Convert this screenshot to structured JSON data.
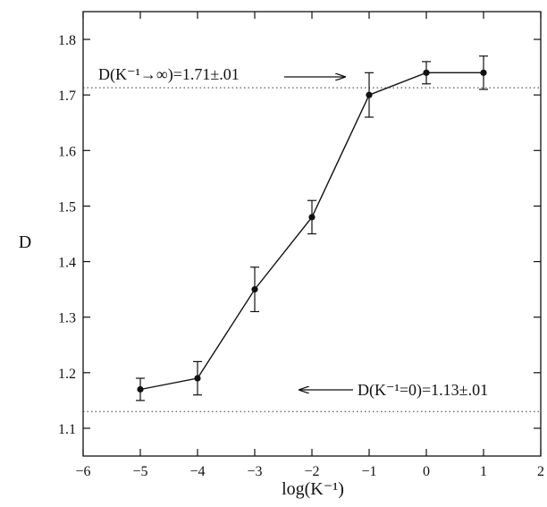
{
  "chart_data": {
    "type": "line",
    "xlabel": "log(K⁻¹)",
    "ylabel": "D",
    "xlim": [
      -6,
      2
    ],
    "ylim": [
      1.05,
      1.85
    ],
    "x_ticks": [
      -6,
      -5,
      -4,
      -3,
      -2,
      -1,
      0,
      1,
      2
    ],
    "y_ticks": [
      1.1,
      1.2,
      1.3,
      1.4,
      1.5,
      1.6,
      1.7,
      1.8
    ],
    "grid": false,
    "series": [
      {
        "x": [
          -5,
          -4,
          -3,
          -2,
          -1,
          0,
          1
        ],
        "y": [
          1.17,
          1.19,
          1.35,
          1.48,
          1.7,
          1.74,
          1.74
        ],
        "error": [
          0.02,
          0.03,
          0.04,
          0.03,
          0.04,
          0.02,
          0.03
        ]
      }
    ],
    "reference_lines": [
      {
        "y": 1.713,
        "style": "dotted"
      },
      {
        "y": 1.13,
        "style": "dotted"
      }
    ],
    "annotations": [
      {
        "text": "D(K⁻¹→∞)=1.71±.01",
        "arrow": "right"
      },
      {
        "text": "D(K⁻¹=0)=1.13±.01",
        "arrow": "left"
      }
    ]
  }
}
